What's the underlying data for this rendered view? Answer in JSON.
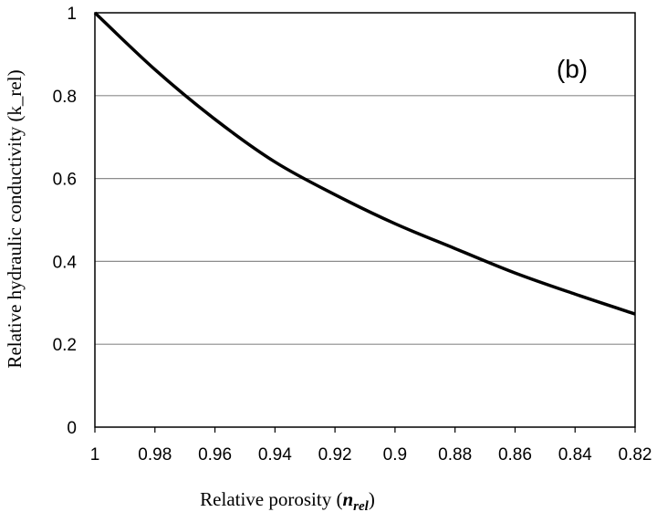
{
  "chart_data": {
    "type": "line",
    "panel_label": "(b)",
    "xlabel": {
      "main": "Relative porosity (",
      "symbol": "n",
      "subscript": "rel",
      "close": ")"
    },
    "ylabel": "Relative hydraulic conductivity (k_rel)",
    "xlim": [
      1.0,
      0.82
    ],
    "ylim": [
      0,
      1
    ],
    "x_reversed": true,
    "x_ticks": [
      1.0,
      0.98,
      0.96,
      0.94,
      0.92,
      0.9,
      0.88,
      0.86,
      0.84,
      0.82
    ],
    "x_tick_labels": [
      "1",
      "0.98",
      "0.96",
      "0.94",
      "0.92",
      "0.9",
      "0.88",
      "0.86",
      "0.84",
      "0.82"
    ],
    "y_ticks": [
      0,
      0.2,
      0.4,
      0.6,
      0.8,
      1
    ],
    "y_tick_labels": [
      "0",
      "0.2",
      "0.4",
      "0.6",
      "0.8",
      "1"
    ],
    "grid": "horizontal",
    "series": [
      {
        "color": "#000000",
        "x": [
          1.0,
          0.98,
          0.96,
          0.94,
          0.92,
          0.9,
          0.88,
          0.86,
          0.84,
          0.82
        ],
        "y": [
          1.0,
          0.863,
          0.743,
          0.64,
          0.561,
          0.491,
          0.431,
          0.372,
          0.321,
          0.273
        ]
      }
    ]
  }
}
